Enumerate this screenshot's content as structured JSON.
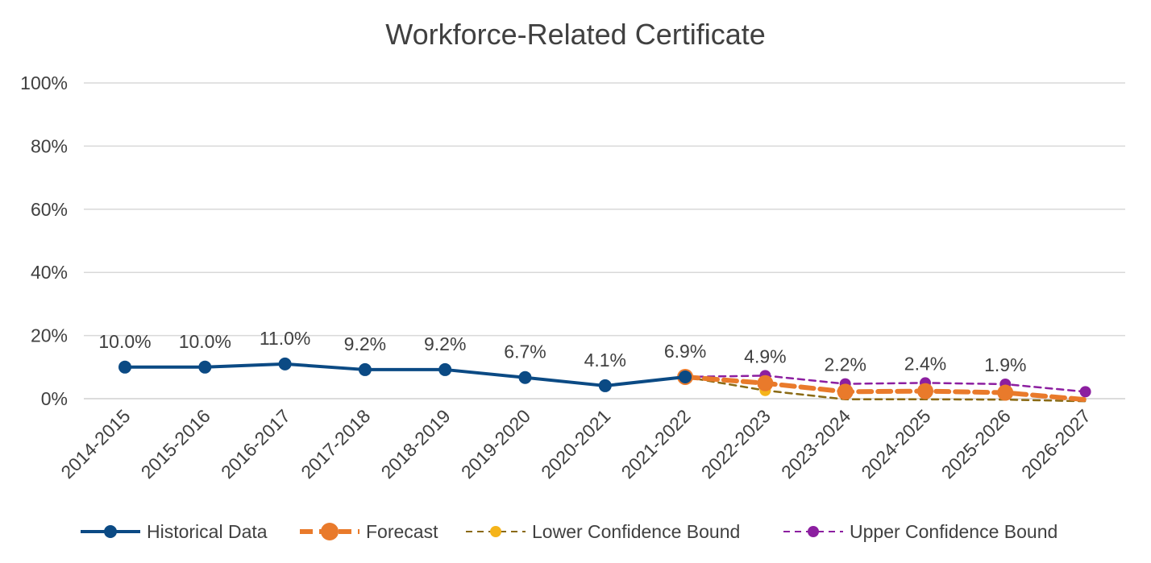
{
  "chart_data": {
    "type": "line",
    "title": "Workforce-Related Certificate",
    "categories": [
      "2014-2015",
      "2015-2016",
      "2016-2017",
      "2017-2018",
      "2018-2019",
      "2019-2020",
      "2020-2021",
      "2021-2022",
      "2022-2023",
      "2023-2024",
      "2024-2025",
      "2025-2026",
      "2026-2027"
    ],
    "y_ticks": [
      "0%",
      "20%",
      "40%",
      "60%",
      "80%",
      "100%"
    ],
    "ylim": [
      0,
      100
    ],
    "grid": true,
    "legend_position": "bottom",
    "series": [
      {
        "name": "Historical Data",
        "color": "#0b4a84",
        "style": "solid",
        "values": [
          10.0,
          10.0,
          11.0,
          9.2,
          9.2,
          6.7,
          4.1,
          6.9,
          null,
          null,
          null,
          null,
          null
        ]
      },
      {
        "name": "Forecast",
        "color": "#e97a2b",
        "style": "dashed-thick",
        "values": [
          null,
          null,
          null,
          null,
          null,
          null,
          null,
          6.9,
          4.9,
          2.2,
          2.4,
          1.9,
          -0.3
        ]
      },
      {
        "name": "Lower Confidence Bound",
        "color": "#f5b41a",
        "line_color": "#8a6a14",
        "style": "dashed",
        "values": [
          null,
          null,
          null,
          null,
          null,
          null,
          null,
          6.9,
          2.6,
          -0.2,
          -0.2,
          -0.3,
          -0.8
        ]
      },
      {
        "name": "Upper Confidence Bound",
        "color": "#8c1fa0",
        "style": "dashed",
        "values": [
          null,
          null,
          null,
          null,
          null,
          null,
          null,
          6.9,
          7.3,
          4.7,
          5.0,
          4.6,
          2.2
        ]
      }
    ],
    "data_labels": [
      "10.0%",
      "10.0%",
      "11.0%",
      "9.2%",
      "9.2%",
      "6.7%",
      "4.1%",
      "6.9%",
      "4.9%",
      "2.2%",
      "2.4%",
      "1.9%",
      ""
    ]
  }
}
